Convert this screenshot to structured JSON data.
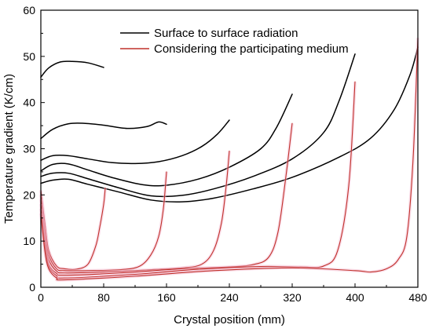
{
  "chart_data": {
    "type": "line",
    "title": "",
    "xlabel": "Crystal position (mm)",
    "ylabel": "Temperature gradient (K/cm)",
    "xlim": [
      0,
      480
    ],
    "ylim": [
      0,
      60
    ],
    "xticks": [
      0,
      80,
      160,
      240,
      320,
      400,
      480
    ],
    "yticks": [
      0,
      10,
      20,
      30,
      40,
      50,
      60
    ],
    "grid": false,
    "legend_position": "top-center",
    "legend": [
      {
        "label": "Surface to surface radiation",
        "color": "#000000"
      },
      {
        "label": "Considering  the participating medium",
        "color": "#c0302a"
      }
    ],
    "series": [
      {
        "group": 0,
        "color": "#000000",
        "x": [
          0,
          10,
          25,
          40,
          60,
          80
        ],
        "y": [
          45.5,
          47.5,
          48.8,
          48.9,
          48.6,
          47.6
        ]
      },
      {
        "group": 0,
        "color": "#000000",
        "x": [
          0,
          15,
          35,
          55,
          80,
          110,
          135,
          150,
          160
        ],
        "y": [
          32.2,
          34.2,
          35.4,
          35.5,
          35.1,
          34.4,
          34.8,
          35.8,
          35.3
        ]
      },
      {
        "group": 0,
        "color": "#000000",
        "x": [
          0,
          15,
          35,
          60,
          90,
          120,
          150,
          180,
          205,
          225,
          240
        ],
        "y": [
          27.5,
          28.5,
          28.5,
          27.8,
          27.0,
          26.8,
          27.2,
          28.5,
          30.5,
          33.2,
          36.2
        ]
      },
      {
        "group": 0,
        "color": "#000000",
        "x": [
          0,
          15,
          35,
          60,
          90,
          130,
          160,
          200,
          240,
          280,
          300,
          320
        ],
        "y": [
          25.2,
          26.6,
          26.7,
          25.4,
          23.8,
          22.2,
          22.1,
          23.4,
          26.0,
          30.0,
          34.6,
          41.8
        ]
      },
      {
        "group": 0,
        "color": "#000000",
        "x": [
          0,
          15,
          35,
          60,
          100,
          140,
          180,
          220,
          270,
          320,
          360,
          380,
          400
        ],
        "y": [
          24.0,
          24.7,
          24.7,
          23.5,
          21.5,
          19.8,
          19.9,
          21.3,
          24.0,
          27.8,
          33.5,
          40.5,
          50.5
        ]
      },
      {
        "group": 0,
        "color": "#000000",
        "x": [
          0,
          15,
          35,
          60,
          100,
          140,
          180,
          220,
          270,
          320,
          380,
          420,
          450,
          470,
          480
        ],
        "y": [
          22.5,
          23.2,
          23.4,
          22.3,
          20.6,
          18.9,
          18.5,
          19.3,
          21.3,
          23.8,
          28.2,
          32.3,
          38.5,
          46.0,
          52.0
        ]
      },
      {
        "group": 1,
        "color": "#c0302a",
        "x": [
          0,
          5,
          10,
          20,
          30,
          45,
          60,
          70,
          75,
          80,
          82
        ],
        "y": [
          21.0,
          14.0,
          8.0,
          4.6,
          4.0,
          3.9,
          5.0,
          9.0,
          13.0,
          18.0,
          21.5
        ]
      },
      {
        "group": 1,
        "color": "#c0302a",
        "x": [
          0,
          5,
          10,
          20,
          30,
          60,
          100,
          125,
          140,
          150,
          156,
          160
        ],
        "y": [
          20.0,
          12.0,
          7.0,
          4.0,
          3.6,
          3.6,
          3.8,
          4.5,
          7.0,
          11.0,
          17.0,
          25.0
        ]
      },
      {
        "group": 1,
        "color": "#c0302a",
        "x": [
          0,
          5,
          10,
          20,
          30,
          80,
          140,
          180,
          205,
          220,
          230,
          236,
          240
        ],
        "y": [
          19.0,
          11.0,
          6.0,
          3.5,
          3.1,
          3.3,
          3.8,
          4.2,
          5.0,
          8.0,
          14.0,
          22.0,
          29.5
        ]
      },
      {
        "group": 1,
        "color": "#c0302a",
        "x": [
          0,
          5,
          10,
          20,
          30,
          100,
          180,
          240,
          270,
          290,
          302,
          312,
          320
        ],
        "y": [
          18.0,
          10.0,
          5.0,
          3.0,
          2.6,
          3.1,
          4.0,
          4.4,
          4.9,
          6.5,
          12.0,
          24.0,
          35.5
        ]
      },
      {
        "group": 1,
        "color": "#c0302a",
        "x": [
          0,
          5,
          10,
          20,
          30,
          120,
          200,
          280,
          330,
          360,
          378,
          392,
          400
        ],
        "y": [
          17.0,
          9.0,
          4.5,
          2.5,
          2.0,
          2.8,
          3.9,
          4.5,
          4.4,
          4.6,
          8.0,
          22.0,
          44.5
        ]
      },
      {
        "group": 1,
        "color": "#c0302a",
        "x": [
          0,
          5,
          10,
          20,
          30,
          120,
          220,
          320,
          400,
          420,
          440,
          455,
          466,
          474,
          480
        ],
        "y": [
          16.0,
          8.0,
          4.0,
          2.0,
          1.6,
          2.4,
          3.6,
          4.2,
          3.6,
          3.3,
          4.0,
          6.0,
          11.0,
          28.0,
          54.0
        ]
      }
    ]
  }
}
